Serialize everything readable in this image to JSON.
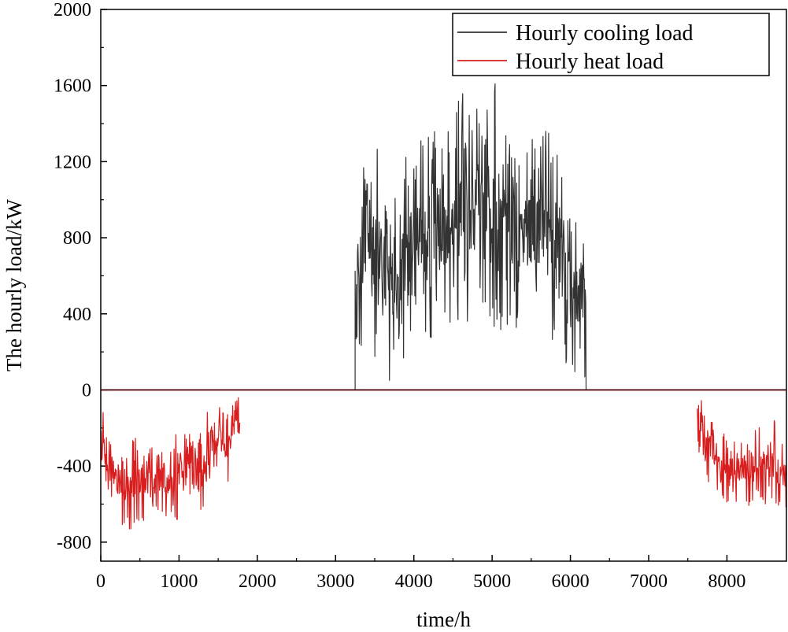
{
  "chart_data": {
    "type": "line",
    "title": "",
    "xlabel": "time/h",
    "ylabel": "The hourly load/kW",
    "xlim": [
      0,
      8760
    ],
    "ylim": [
      -900,
      2000
    ],
    "xticks": [
      0,
      1000,
      2000,
      3000,
      4000,
      5000,
      6000,
      7000,
      8000
    ],
    "yticks": [
      -800,
      -400,
      0,
      400,
      800,
      1200,
      1600,
      2000
    ],
    "grid": false,
    "legend_position": "top-right",
    "series": [
      {
        "name": "Hourly cooling load",
        "color": "#333333",
        "hour_range": [
          3250,
          6200
        ],
        "envelope_x": [
          3250,
          3300,
          3400,
          3500,
          3600,
          3700,
          3800,
          3900,
          4000,
          4100,
          4200,
          4300,
          4400,
          4500,
          4600,
          4700,
          4800,
          4900,
          5000,
          5050,
          5100,
          5200,
          5300,
          5400,
          5500,
          5600,
          5700,
          5800,
          5900,
          6000,
          6100,
          6200
        ],
        "envelope_max": [
          880,
          920,
          1390,
          1200,
          1420,
          1050,
          1100,
          1250,
          1350,
          1530,
          1480,
          1300,
          1520,
          1380,
          1640,
          1500,
          1580,
          1550,
          1650,
          1660,
          1450,
          1400,
          1250,
          1300,
          1420,
          1440,
          1400,
          1270,
          1400,
          900,
          940,
          890
        ],
        "envelope_min": [
          0,
          150,
          220,
          80,
          180,
          0,
          0,
          150,
          280,
          300,
          250,
          280,
          200,
          320,
          250,
          330,
          300,
          350,
          300,
          340,
          300,
          280,
          300,
          330,
          280,
          250,
          320,
          150,
          130,
          150,
          0,
          0
        ]
      },
      {
        "name": "Hourly heat load",
        "color": "#d81e1e",
        "hour_ranges": [
          [
            0,
            1780
          ],
          [
            7620,
            8760
          ]
        ],
        "envelope_x": [
          0,
          100,
          200,
          300,
          400,
          500,
          600,
          700,
          800,
          900,
          1000,
          1100,
          1200,
          1300,
          1400,
          1500,
          1600,
          1700,
          1780,
          7620,
          7700,
          7800,
          7900,
          8000,
          8100,
          8200,
          8300,
          8400,
          8500,
          8600,
          8700,
          8760
        ],
        "envelope_max": [
          -20,
          -250,
          -300,
          -350,
          -230,
          -250,
          -250,
          -300,
          -260,
          -270,
          -200,
          -240,
          -220,
          -180,
          -70,
          -80,
          -120,
          -30,
          -20,
          0,
          -20,
          -100,
          -250,
          -200,
          -260,
          -220,
          -180,
          -120,
          -200,
          -150,
          -280,
          -300
        ],
        "envelope_min": [
          -500,
          -550,
          -650,
          -740,
          -750,
          -700,
          -720,
          -650,
          -680,
          -700,
          -690,
          -650,
          -560,
          -650,
          -450,
          -500,
          -510,
          -420,
          -350,
          -380,
          -400,
          -550,
          -550,
          -600,
          -630,
          -600,
          -620,
          -600,
          -610,
          -640,
          -640,
          -650
        ]
      }
    ],
    "zero_line": {
      "value": 0,
      "color": "#000000"
    }
  }
}
